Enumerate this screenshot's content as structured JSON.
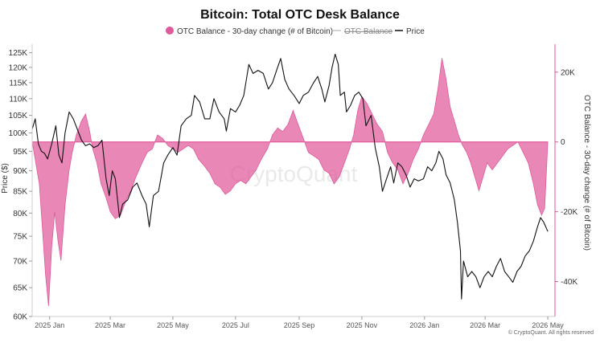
{
  "chart_data": {
    "type": "line",
    "title": "Bitcoin: Total OTC Desk Balance",
    "legend": {
      "placement": "top-center",
      "entries": [
        {
          "name": "OTC Balance - 30-day change (# of Bitcoin)",
          "style": "area",
          "color": "#e0599b"
        },
        {
          "name": "OTC Balance",
          "style": "line",
          "color": "#aaaaaa",
          "hidden": true
        },
        {
          "name": "Price",
          "style": "line",
          "color": "#111111"
        }
      ]
    },
    "ylabel_left": "Price ($)",
    "ylabel_right": "OTC Balance - 30-day change (# of Bitcoin)",
    "y_left_scale": "log",
    "y_left_ticks": [
      {
        "value": 60000,
        "label": "60K"
      },
      {
        "value": 65000,
        "label": "65K"
      },
      {
        "value": 70000,
        "label": "70K"
      },
      {
        "value": 75000,
        "label": "75K"
      },
      {
        "value": 80000,
        "label": "80K"
      },
      {
        "value": 85000,
        "label": "85K"
      },
      {
        "value": 90000,
        "label": "90K"
      },
      {
        "value": 95000,
        "label": "95K"
      },
      {
        "value": 100000,
        "label": "100K"
      },
      {
        "value": 105000,
        "label": "105K"
      },
      {
        "value": 110000,
        "label": "110K"
      },
      {
        "value": 115000,
        "label": "115K"
      },
      {
        "value": 120000,
        "label": "120K"
      },
      {
        "value": 125000,
        "label": "125K"
      }
    ],
    "y_left_range": [
      60000,
      128000
    ],
    "y_right_ticks": [
      {
        "value": 20000,
        "label": "20K"
      },
      {
        "value": 0,
        "label": "0"
      },
      {
        "value": -20000,
        "label": "-20K"
      },
      {
        "value": -40000,
        "label": "-40K"
      }
    ],
    "y_right_range": [
      -50000,
      28000
    ],
    "x_range": [
      "2024-12-15",
      "2026-05-08"
    ],
    "x_ticks": [
      {
        "value": "2025-01-01",
        "label": "2025 Jan"
      },
      {
        "value": "2025-03-01",
        "label": "2025 Mar"
      },
      {
        "value": "2025-05-01",
        "label": "2025 May"
      },
      {
        "value": "2025-07-01",
        "label": "2025 Jul"
      },
      {
        "value": "2025-09-01",
        "label": "2025 Sep"
      },
      {
        "value": "2025-11-01",
        "label": "2025 Nov"
      },
      {
        "value": "2026-01-01",
        "label": "2026 Jan"
      },
      {
        "value": "2026-03-01",
        "label": "2026 Mar"
      },
      {
        "value": "2026-05-01",
        "label": "2026 May"
      }
    ],
    "grid": false,
    "series": [
      {
        "name": "OTC Balance - 30-day change (# of Bitcoin)",
        "axis": "right",
        "type": "area",
        "color": "#e0599b",
        "points": [
          [
            "2024-12-15",
            0
          ],
          [
            "2024-12-18",
            -5000
          ],
          [
            "2024-12-22",
            -12000
          ],
          [
            "2024-12-25",
            -25000
          ],
          [
            "2024-12-28",
            -38000
          ],
          [
            "2024-12-31",
            -47000
          ],
          [
            "2025-01-03",
            -30000
          ],
          [
            "2025-01-06",
            -20000
          ],
          [
            "2025-01-09",
            -28000
          ],
          [
            "2025-01-12",
            -34000
          ],
          [
            "2025-01-16",
            -18000
          ],
          [
            "2025-01-20",
            -8000
          ],
          [
            "2025-01-23",
            -3000
          ],
          [
            "2025-01-27",
            2000
          ],
          [
            "2025-02-01",
            6000
          ],
          [
            "2025-02-05",
            8000
          ],
          [
            "2025-02-09",
            3000
          ],
          [
            "2025-02-12",
            -2000
          ],
          [
            "2025-02-16",
            -6000
          ],
          [
            "2025-02-20",
            -12000
          ],
          [
            "2025-02-25",
            -16000
          ],
          [
            "2025-03-01",
            -20000
          ],
          [
            "2025-03-06",
            -22000
          ],
          [
            "2025-03-11",
            -21000
          ],
          [
            "2025-03-16",
            -17000
          ],
          [
            "2025-03-21",
            -14000
          ],
          [
            "2025-03-26",
            -10000
          ],
          [
            "2025-04-01",
            -6000
          ],
          [
            "2025-04-06",
            -3000
          ],
          [
            "2025-04-11",
            -2000
          ],
          [
            "2025-04-16",
            2000
          ],
          [
            "2025-04-21",
            1000
          ],
          [
            "2025-04-26",
            -1000
          ],
          [
            "2025-05-01",
            -2000
          ],
          [
            "2025-05-06",
            -3000
          ],
          [
            "2025-05-11",
            -2000
          ],
          [
            "2025-05-16",
            -1000
          ],
          [
            "2025-05-21",
            -2000
          ],
          [
            "2025-05-26",
            -5000
          ],
          [
            "2025-06-01",
            -7000
          ],
          [
            "2025-06-06",
            -9000
          ],
          [
            "2025-06-11",
            -12000
          ],
          [
            "2025-06-16",
            -13000
          ],
          [
            "2025-06-21",
            -15000
          ],
          [
            "2025-06-26",
            -14000
          ],
          [
            "2025-07-01",
            -12000
          ],
          [
            "2025-07-06",
            -11000
          ],
          [
            "2025-07-11",
            -12000
          ],
          [
            "2025-07-16",
            -10000
          ],
          [
            "2025-07-21",
            -8000
          ],
          [
            "2025-07-26",
            -5000
          ],
          [
            "2025-08-01",
            -2000
          ],
          [
            "2025-08-06",
            2000
          ],
          [
            "2025-08-11",
            4000
          ],
          [
            "2025-08-16",
            3000
          ],
          [
            "2025-08-21",
            5000
          ],
          [
            "2025-08-26",
            9000
          ],
          [
            "2025-08-31",
            5000
          ],
          [
            "2025-09-05",
            1000
          ],
          [
            "2025-09-10",
            -3000
          ],
          [
            "2025-09-15",
            -4000
          ],
          [
            "2025-09-20",
            -5000
          ],
          [
            "2025-09-25",
            -8000
          ],
          [
            "2025-09-30",
            -9000
          ],
          [
            "2025-10-05",
            -12000
          ],
          [
            "2025-10-10",
            -10000
          ],
          [
            "2025-10-15",
            -6000
          ],
          [
            "2025-10-20",
            -2000
          ],
          [
            "2025-10-24",
            2000
          ],
          [
            "2025-10-28",
            9000
          ],
          [
            "2025-11-01",
            13000
          ],
          [
            "2025-11-06",
            11000
          ],
          [
            "2025-11-11",
            8000
          ],
          [
            "2025-11-16",
            5000
          ],
          [
            "2025-11-21",
            3000
          ],
          [
            "2025-11-26",
            -3000
          ],
          [
            "2025-12-01",
            -6000
          ],
          [
            "2025-12-06",
            -8000
          ],
          [
            "2025-12-11",
            -12000
          ],
          [
            "2025-12-16",
            -9000
          ],
          [
            "2025-12-21",
            -5000
          ],
          [
            "2025-12-26",
            -2000
          ],
          [
            "2025-12-31",
            2000
          ],
          [
            "2026-01-05",
            5000
          ],
          [
            "2026-01-10",
            8000
          ],
          [
            "2026-01-14",
            15000
          ],
          [
            "2026-01-18",
            24000
          ],
          [
            "2026-01-22",
            18000
          ],
          [
            "2026-01-26",
            10000
          ],
          [
            "2026-01-30",
            6000
          ],
          [
            "2026-02-03",
            2000
          ],
          [
            "2026-02-07",
            -1000
          ],
          [
            "2026-02-11",
            -3000
          ],
          [
            "2026-02-15",
            -6000
          ],
          [
            "2026-02-19",
            -10000
          ],
          [
            "2026-02-23",
            -14000
          ],
          [
            "2026-02-27",
            -10000
          ],
          [
            "2026-03-03",
            -6000
          ],
          [
            "2026-03-08",
            -8000
          ],
          [
            "2026-03-13",
            -6000
          ],
          [
            "2026-03-18",
            -4000
          ],
          [
            "2026-03-23",
            -2000
          ],
          [
            "2026-03-28",
            -1000
          ],
          [
            "2026-04-02",
            0
          ],
          [
            "2026-04-07",
            -3000
          ],
          [
            "2026-04-12",
            -6000
          ],
          [
            "2026-04-17",
            -12000
          ],
          [
            "2026-04-21",
            -18000
          ],
          [
            "2026-04-25",
            -21000
          ],
          [
            "2026-04-28",
            -19000
          ],
          [
            "2026-05-01",
            0
          ]
        ]
      },
      {
        "name": "Price",
        "axis": "left",
        "type": "line",
        "color": "#111111",
        "points": [
          [
            "2024-12-15",
            101000
          ],
          [
            "2024-12-18",
            104000
          ],
          [
            "2024-12-21",
            97000
          ],
          [
            "2024-12-24",
            95000
          ],
          [
            "2024-12-27",
            94500
          ],
          [
            "2024-12-30",
            93000
          ],
          [
            "2025-01-03",
            97000
          ],
          [
            "2025-01-07",
            102000
          ],
          [
            "2025-01-10",
            94000
          ],
          [
            "2025-01-13",
            92000
          ],
          [
            "2025-01-16",
            100000
          ],
          [
            "2025-01-20",
            106000
          ],
          [
            "2025-01-24",
            104000
          ],
          [
            "2025-01-28",
            101000
          ],
          [
            "2025-02-01",
            98000
          ],
          [
            "2025-02-05",
            96500
          ],
          [
            "2025-02-09",
            97000
          ],
          [
            "2025-02-13",
            96000
          ],
          [
            "2025-02-17",
            96500
          ],
          [
            "2025-02-21",
            98000
          ],
          [
            "2025-02-25",
            88000
          ],
          [
            "2025-02-28",
            84000
          ],
          [
            "2025-03-03",
            90000
          ],
          [
            "2025-03-06",
            88000
          ],
          [
            "2025-03-10",
            79000
          ],
          [
            "2025-03-13",
            82000
          ],
          [
            "2025-03-18",
            83000
          ],
          [
            "2025-03-23",
            86000
          ],
          [
            "2025-03-27",
            87000
          ],
          [
            "2025-04-01",
            84000
          ],
          [
            "2025-04-05",
            82000
          ],
          [
            "2025-04-08",
            77000
          ],
          [
            "2025-04-12",
            84000
          ],
          [
            "2025-04-17",
            85000
          ],
          [
            "2025-04-22",
            92000
          ],
          [
            "2025-04-26",
            94000
          ],
          [
            "2025-05-01",
            96000
          ],
          [
            "2025-05-05",
            94000
          ],
          [
            "2025-05-09",
            102000
          ],
          [
            "2025-05-14",
            104000
          ],
          [
            "2025-05-19",
            105000
          ],
          [
            "2025-05-22",
            111000
          ],
          [
            "2025-05-27",
            109000
          ],
          [
            "2025-06-01",
            104000
          ],
          [
            "2025-06-06",
            104000
          ],
          [
            "2025-06-10",
            110000
          ],
          [
            "2025-06-15",
            106000
          ],
          [
            "2025-06-20",
            104000
          ],
          [
            "2025-06-22",
            100500
          ],
          [
            "2025-06-26",
            107000
          ],
          [
            "2025-07-01",
            106000
          ],
          [
            "2025-07-05",
            108000
          ],
          [
            "2025-07-09",
            111000
          ],
          [
            "2025-07-14",
            121000
          ],
          [
            "2025-07-18",
            118000
          ],
          [
            "2025-07-23",
            119000
          ],
          [
            "2025-07-28",
            118000
          ],
          [
            "2025-08-02",
            113000
          ],
          [
            "2025-08-06",
            115000
          ],
          [
            "2025-08-10",
            119000
          ],
          [
            "2025-08-14",
            123000
          ],
          [
            "2025-08-18",
            116000
          ],
          [
            "2025-08-22",
            113000
          ],
          [
            "2025-08-27",
            111000
          ],
          [
            "2025-09-01",
            108500
          ],
          [
            "2025-09-05",
            111000
          ],
          [
            "2025-09-10",
            112000
          ],
          [
            "2025-09-15",
            115000
          ],
          [
            "2025-09-19",
            117000
          ],
          [
            "2025-09-23",
            113000
          ],
          [
            "2025-09-26",
            109000
          ],
          [
            "2025-09-30",
            114000
          ],
          [
            "2025-10-03",
            120000
          ],
          [
            "2025-10-06",
            124500
          ],
          [
            "2025-10-09",
            121000
          ],
          [
            "2025-10-11",
            111000
          ],
          [
            "2025-10-15",
            112000
          ],
          [
            "2025-10-17",
            106000
          ],
          [
            "2025-10-21",
            108000
          ],
          [
            "2025-10-25",
            111000
          ],
          [
            "2025-10-29",
            112000
          ],
          [
            "2025-11-02",
            110000
          ],
          [
            "2025-11-05",
            102000
          ],
          [
            "2025-11-10",
            105000
          ],
          [
            "2025-11-14",
            96000
          ],
          [
            "2025-11-18",
            91000
          ],
          [
            "2025-11-21",
            85000
          ],
          [
            "2025-11-25",
            88000
          ],
          [
            "2025-11-29",
            91000
          ],
          [
            "2025-12-02",
            87000
          ],
          [
            "2025-12-06",
            92000
          ],
          [
            "2025-12-10",
            91000
          ],
          [
            "2025-12-14",
            89000
          ],
          [
            "2025-12-18",
            86000
          ],
          [
            "2025-12-22",
            88000
          ],
          [
            "2025-12-26",
            87500
          ],
          [
            "2025-12-31",
            88000
          ],
          [
            "2026-01-04",
            91000
          ],
          [
            "2026-01-08",
            90000
          ],
          [
            "2026-01-12",
            92000
          ],
          [
            "2026-01-15",
            95000
          ],
          [
            "2026-01-19",
            93000
          ],
          [
            "2026-01-22",
            89000
          ],
          [
            "2026-01-26",
            87000
          ],
          [
            "2026-01-30",
            83000
          ],
          [
            "2026-02-02",
            78000
          ],
          [
            "2026-02-05",
            72000
          ],
          [
            "2026-02-06",
            63000
          ],
          [
            "2026-02-08",
            70000
          ],
          [
            "2026-02-12",
            67000
          ],
          [
            "2026-02-16",
            68000
          ],
          [
            "2026-02-20",
            67000
          ],
          [
            "2026-02-24",
            65000
          ],
          [
            "2026-02-28",
            67000
          ],
          [
            "2026-03-04",
            68000
          ],
          [
            "2026-03-08",
            67000
          ],
          [
            "2026-03-12",
            69000
          ],
          [
            "2026-03-16",
            70500
          ],
          [
            "2026-03-20",
            68000
          ],
          [
            "2026-03-24",
            67000
          ],
          [
            "2026-03-28",
            66000
          ],
          [
            "2026-04-01",
            68000
          ],
          [
            "2026-04-05",
            69000
          ],
          [
            "2026-04-09",
            71000
          ],
          [
            "2026-04-13",
            72000
          ],
          [
            "2026-04-17",
            74000
          ],
          [
            "2026-04-21",
            77000
          ],
          [
            "2026-04-24",
            79000
          ],
          [
            "2026-04-27",
            78000
          ],
          [
            "2026-05-01",
            76000
          ]
        ]
      }
    ]
  },
  "watermark": "CryptoQuant",
  "copyright": "© CryptoQuant. All rights reserved"
}
